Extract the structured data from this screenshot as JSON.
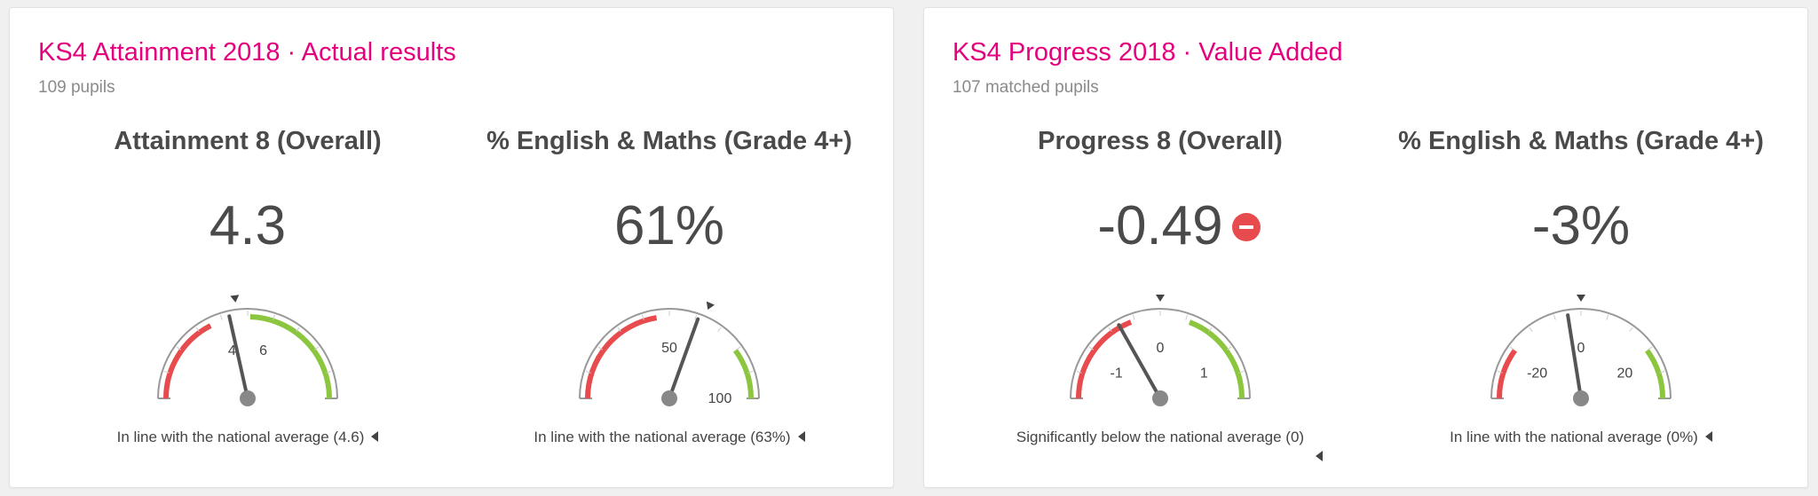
{
  "colors": {
    "accent": "#e5007e",
    "below": "#e84b4e",
    "above": "#8cc63f",
    "needle": "#555555",
    "track": "#999999"
  },
  "cards": [
    {
      "title": "KS4 Attainment 2018 · Actual results",
      "subtitle": "109 pupils",
      "gauges": [
        {
          "metric": "Attainment 8 (Overall)",
          "value": "4.3",
          "caption": "In line with the national average (4.6)",
          "significance_icon": "",
          "chart_data": {
            "type": "gauge",
            "min": 0,
            "max": 10,
            "value": 4.3,
            "national_average": 4.6,
            "red_band": [
              0,
              3.5
            ],
            "green_band": [
              5.1,
              10
            ],
            "tick_labels": [
              {
                "value": 4,
                "label": "4"
              },
              {
                "value": 6,
                "label": "6"
              }
            ]
          }
        },
        {
          "metric": "% English & Maths (Grade 4+)",
          "value": "61%",
          "caption": "In line with the national average (63%)",
          "significance_icon": "",
          "chart_data": {
            "type": "gauge",
            "min": 0,
            "max": 100,
            "value": 61,
            "national_average": 63,
            "red_band": [
              0,
              45
            ],
            "green_band": [
              80,
              100
            ],
            "tick_labels": [
              {
                "value": 50,
                "label": "50"
              },
              {
                "value": 100,
                "label": "100"
              }
            ]
          }
        }
      ]
    },
    {
      "title": "KS4 Progress 2018 · Value Added",
      "subtitle": "107 matched pupils",
      "gauges": [
        {
          "metric": "Progress 8 (Overall)",
          "value": "-0.49",
          "caption": "Significantly below the national average (0)",
          "significance_icon": "minus-circle-icon",
          "chart_data": {
            "type": "gauge",
            "min": -1.5,
            "max": 1.5,
            "value": -0.49,
            "national_average": 0,
            "red_band": [
              -1.5,
              -0.35
            ],
            "green_band": [
              0.35,
              1.5
            ],
            "tick_labels": [
              {
                "value": -1,
                "label": "-1"
              },
              {
                "value": 0,
                "label": "0"
              },
              {
                "value": 1,
                "label": "1"
              }
            ]
          }
        },
        {
          "metric": "% English & Maths (Grade 4+)",
          "value": "-3%",
          "caption": "In line with the national average (0%)",
          "significance_icon": "",
          "chart_data": {
            "type": "gauge",
            "min": -30,
            "max": 30,
            "value": -3,
            "national_average": 0,
            "red_band": [
              -30,
              -18
            ],
            "green_band": [
              18,
              30
            ],
            "tick_labels": [
              {
                "value": -20,
                "label": "-20"
              },
              {
                "value": 0,
                "label": "0"
              },
              {
                "value": 20,
                "label": "20"
              }
            ]
          }
        }
      ]
    }
  ]
}
